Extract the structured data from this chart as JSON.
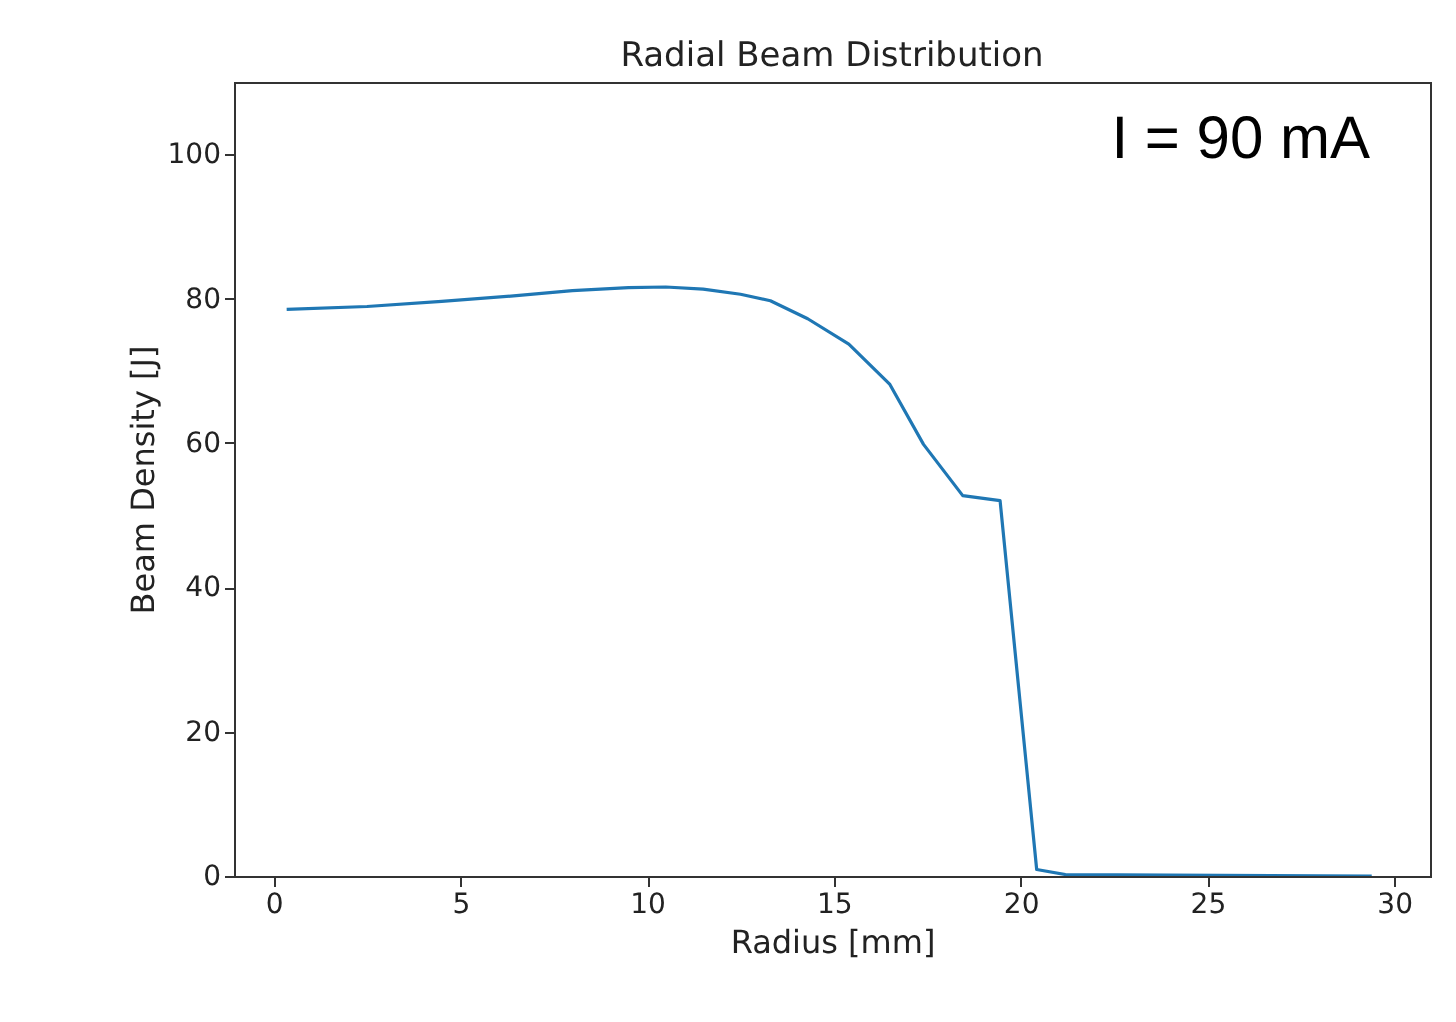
{
  "chart_data": {
    "type": "line",
    "title": "Radial Beam Distribution",
    "xlabel": "Radius [mm]",
    "ylabel": "Beam Density [J]",
    "annotations": [
      "I = 90 mA"
    ],
    "x": [
      0.35,
      2.5,
      4.5,
      6.5,
      8.0,
      9.5,
      10.5,
      11.5,
      12.5,
      13.3,
      14.3,
      15.4,
      16.5,
      17.4,
      18.45,
      19.45,
      20.43,
      21.2,
      29.4
    ],
    "series": [
      {
        "color": "#1f77b4",
        "values": [
          78.5,
          78.9,
          79.6,
          80.4,
          81.1,
          81.5,
          81.6,
          81.3,
          80.6,
          79.7,
          77.2,
          73.7,
          68.1,
          59.8,
          52.7,
          52.0,
          0.9,
          0.2,
          0.0
        ]
      }
    ],
    "xlim": [
      -1.06,
      30.96
    ],
    "ylim": [
      0,
      110
    ],
    "xticks": [
      0,
      5,
      10,
      15,
      20,
      25,
      30
    ],
    "yticks": [
      0,
      20,
      40,
      60,
      80,
      100
    ],
    "grid": false,
    "marker": "none",
    "line_style": "solid"
  }
}
